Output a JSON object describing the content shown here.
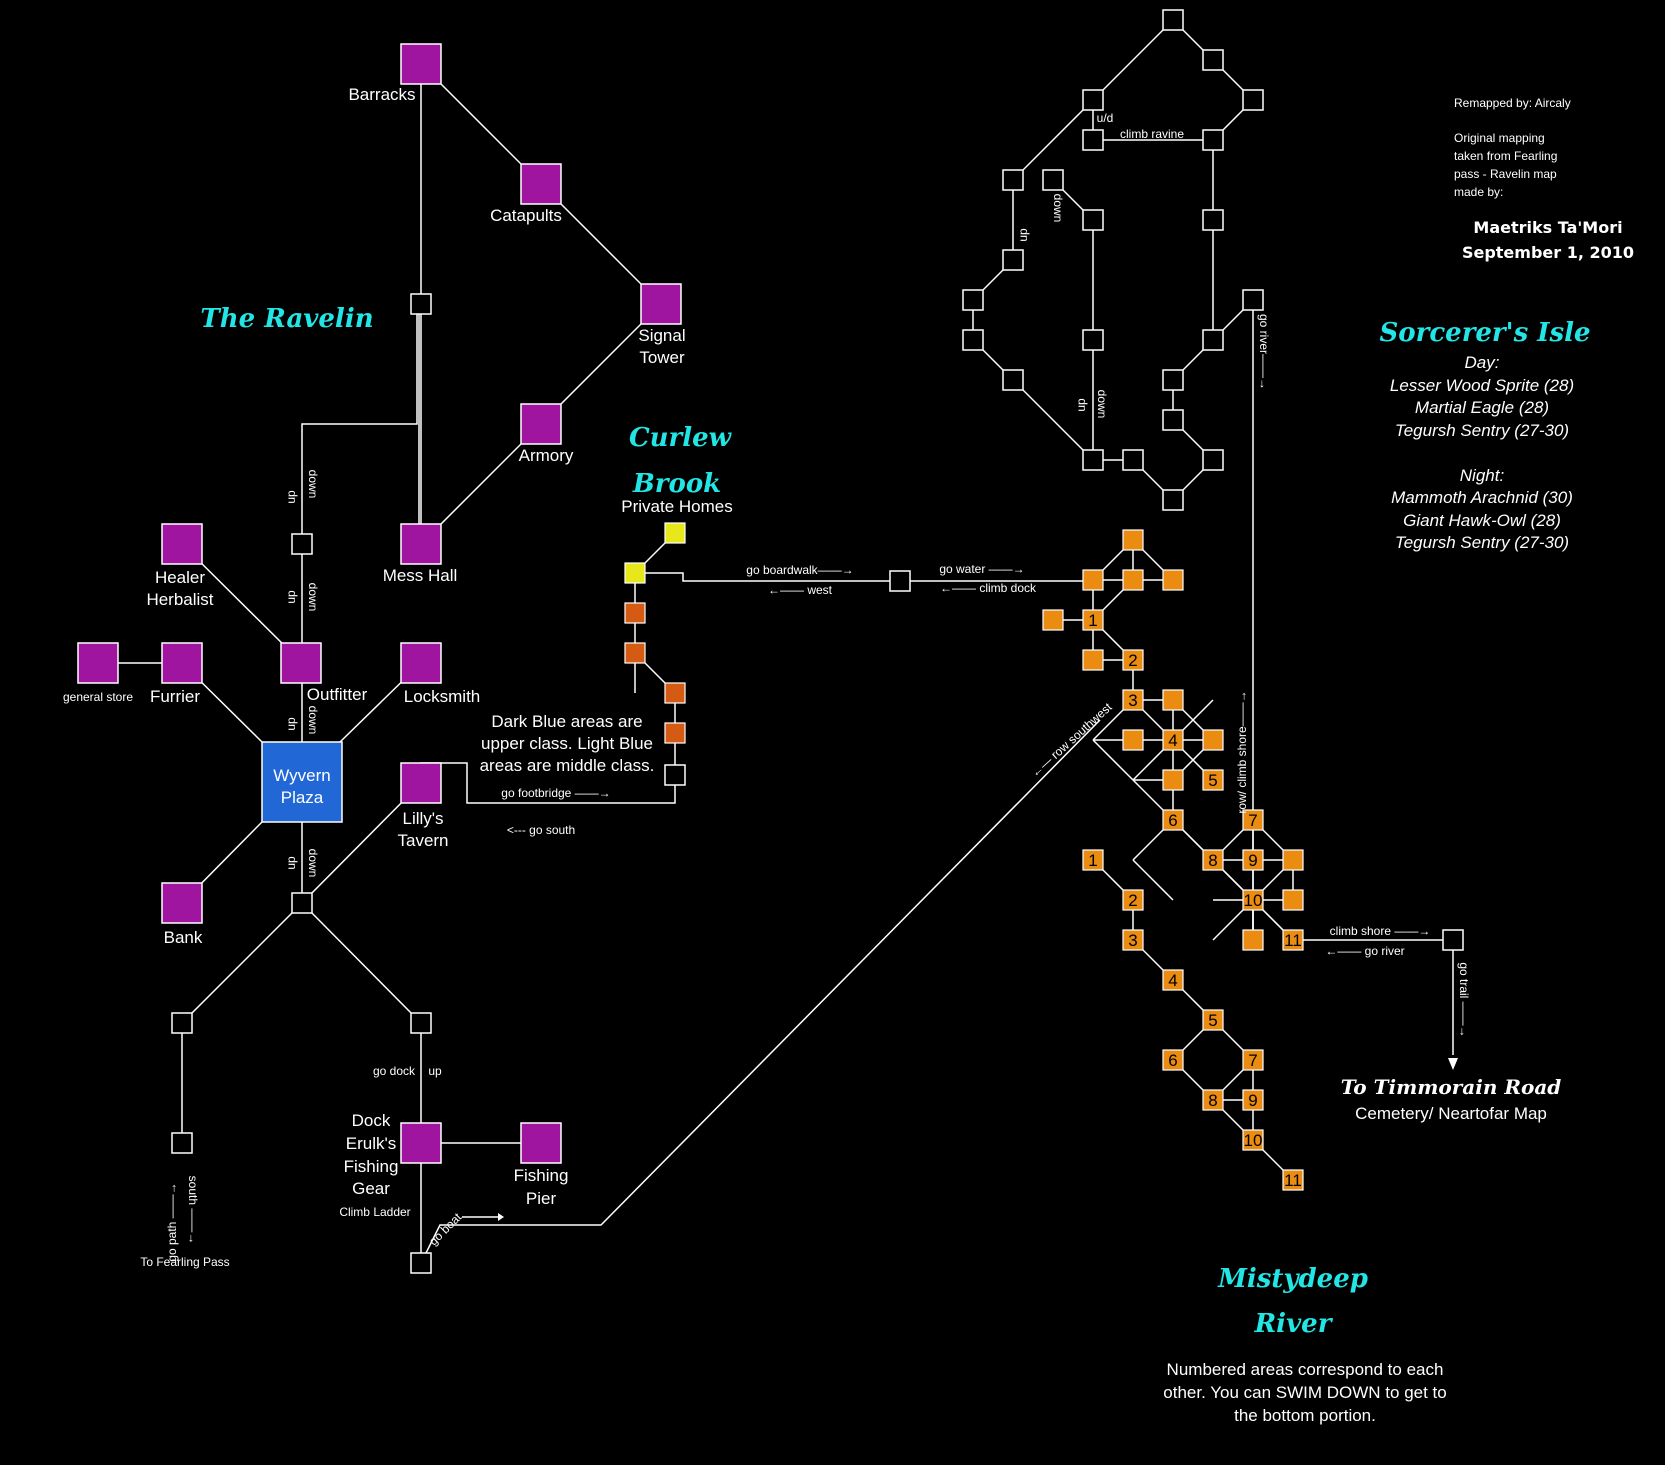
{
  "credits": {
    "remapped": "Remapped by: Aircaly",
    "original_1": "Original mapping",
    "original_2": "taken from Fearling",
    "original_3": "pass - Ravelin map",
    "original_4": "made by:",
    "author": "Maetriks Ta'Mori",
    "date": "September 1, 2010"
  },
  "regions": {
    "ravelin": "The Ravelin",
    "curlew_1": "Curlew",
    "curlew_2": "Brook",
    "sorcerer": "Sorcerer's Isle",
    "misty_1": "Mistydeep",
    "misty_2": "River"
  },
  "mobs": {
    "day_header": "Day:",
    "day": [
      "Lesser Wood Sprite (28)",
      "Martial Eagle (28)",
      "Tegursh Sentry (27-30)"
    ],
    "night_header": "Night:",
    "night": [
      "Mammoth Arachnid (30)",
      "Giant Hawk-Owl (28)",
      "Tegursh Sentry (27-30)"
    ]
  },
  "rooms": {
    "barracks": "Barracks",
    "catapults": "Catapults",
    "signal_1": "Signal",
    "signal_2": "Tower",
    "armory": "Armory",
    "mess_hall": "Mess Hall",
    "healer_1": "Healer",
    "healer_2": "Herbalist",
    "general_store": "general store",
    "furrier": "Furrier",
    "outfitter": "Outfitter",
    "locksmith": "Locksmith",
    "plaza_1": "Wyvern",
    "plaza_2": "Plaza",
    "tavern_1": "Lilly's",
    "tavern_2": "Tavern",
    "bank": "Bank",
    "dock_1": "Dock",
    "dock_2": "Erulk's",
    "dock_3": "Fishing",
    "dock_4": "Gear",
    "pier_1": "Fishing",
    "pier_2": "Pier",
    "private_homes": "Private Homes"
  },
  "notes": {
    "class_1": "Dark Blue areas are",
    "class_2": "upper class. Light Blue",
    "class_3": "areas are middle class.",
    "numbered_1": "Numbered areas correspond to each",
    "numbered_2": "other. You can SWIM DOWN to get to",
    "numbered_3": "the bottom portion."
  },
  "exits": {
    "to_fearling": "To Fearling Pass",
    "to_timmorain": "To Timmorain Road",
    "cemetery": "Cemetery/ Neartofar Map"
  },
  "directions": {
    "down": "down",
    "up": "up",
    "u_d": "u/d",
    "dn": "dn",
    "climb_ravine": "climb ravine",
    "go_river": "go river",
    "go_river_arrow": "go river——→",
    "row_climb_shore": "row/ climb shore——→",
    "row_southwest": "←— row southwest",
    "go_boardwalk": "go boardwalk——→",
    "west": "←—— west",
    "go_water": "go water ——→",
    "climb_dock": "←—— climb dock",
    "go_footbridge": "go footbridge ——→",
    "go_south": "<--- go south",
    "climb_shore": "climb shore ——→",
    "go_river_back": "←—— go river",
    "go_trail": "go trail ——→",
    "go_dock": "go dock",
    "climb_ladder": "Climb Ladder",
    "go_boat": "go boat",
    "go_path": "go path ——→",
    "south": "south ——→"
  },
  "numbers": [
    "1",
    "2",
    "3",
    "4",
    "5",
    "6",
    "7",
    "8",
    "9",
    "10",
    "11"
  ],
  "colors": {
    "background": "#000000",
    "upper_class": "#2167d6",
    "shop": "#a0159f",
    "river": "#ea8c12",
    "brook": "#d55a14",
    "homes": "#e6e81c",
    "title": "#22e5e5"
  }
}
